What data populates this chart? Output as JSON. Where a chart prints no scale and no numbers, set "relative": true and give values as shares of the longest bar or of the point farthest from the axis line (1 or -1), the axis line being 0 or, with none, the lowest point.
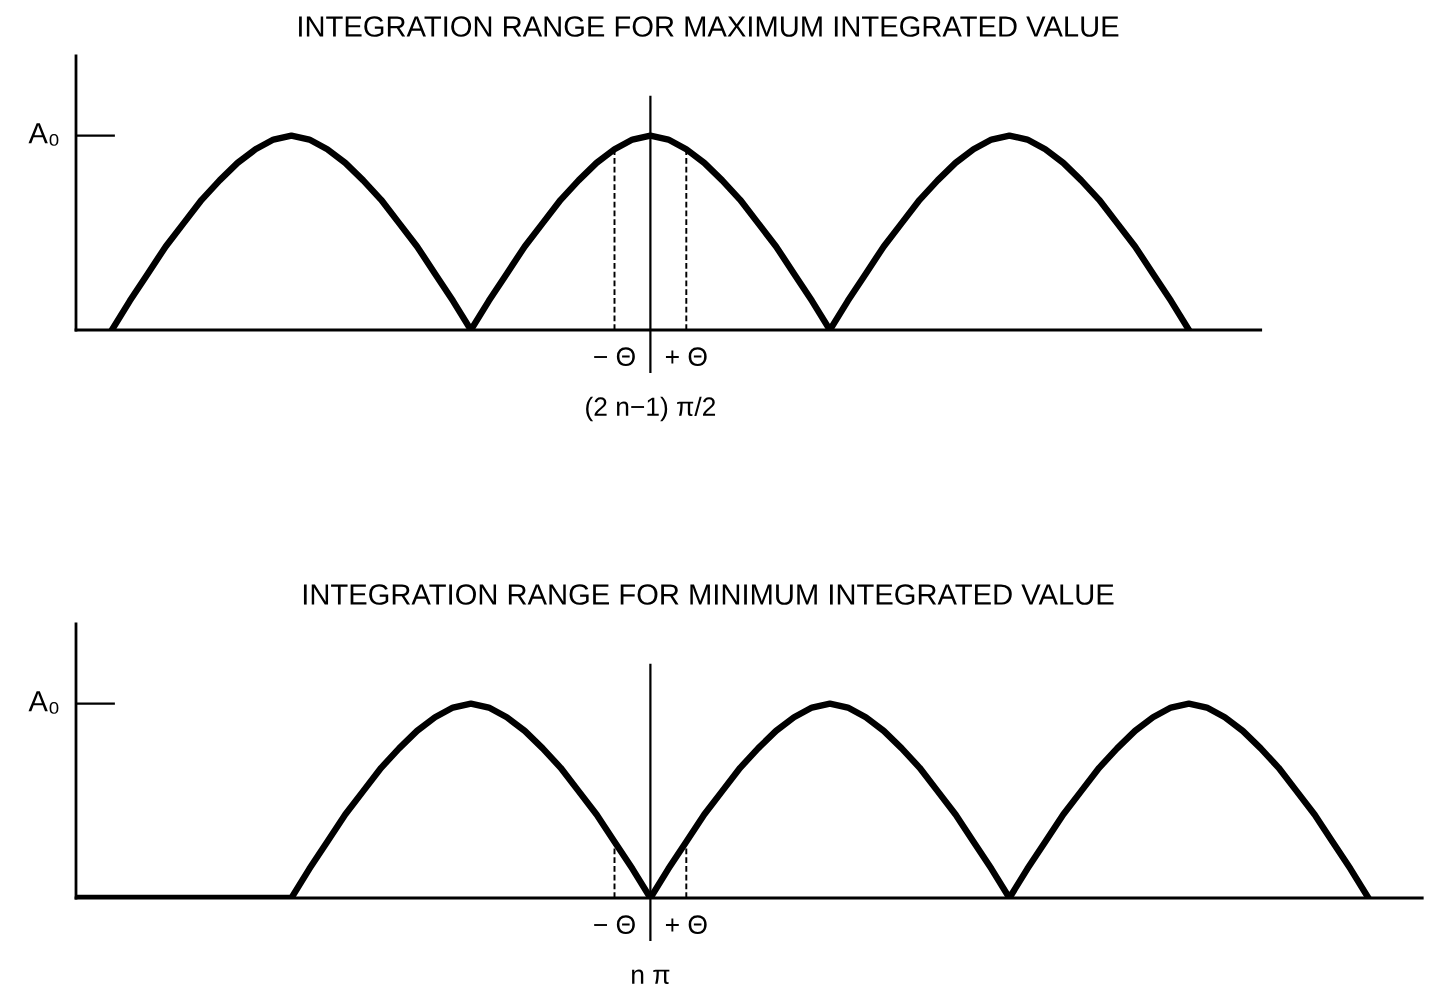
{
  "chart_data": [
    {
      "type": "line",
      "title": "INTEGRATION RANGE FOR MAXIMUM INTEGRATED VALUE",
      "relative": true,
      "ylabel": "A₀",
      "categories": [
        null,
        null,
        null,
        null,
        null,
        null,
        null,
        null,
        null,
        null,
        null,
        null,
        null,
        null,
        null,
        null,
        null,
        null,
        null,
        null,
        null,
        null,
        null,
        null,
        null,
        null,
        null,
        null,
        "− Θ",
        null,
        "(2 n−1) π/2",
        null,
        "+ Θ",
        null,
        null,
        null,
        null,
        null,
        null,
        null,
        null,
        null,
        null,
        null,
        null,
        null,
        null,
        null,
        null,
        null,
        null,
        null,
        null,
        null,
        null,
        null,
        null,
        null,
        null,
        null,
        null
      ],
      "series": [
        {
          "color": "#000000",
          "values": [
            0,
            0.15,
            0.29,
            0.43,
            0.55,
            0.67,
            0.77,
            0.86,
            0.93,
            0.98,
            1,
            0.98,
            0.93,
            0.86,
            0.77,
            0.67,
            0.55,
            0.43,
            0.29,
            0.15,
            0,
            0.15,
            0.29,
            0.43,
            0.55,
            0.67,
            0.77,
            0.86,
            0.93,
            0.98,
            1,
            0.98,
            0.93,
            0.86,
            0.77,
            0.67,
            0.55,
            0.43,
            0.29,
            0.15,
            0,
            0.15,
            0.29,
            0.43,
            0.55,
            0.67,
            0.77,
            0.86,
            0.93,
            0.98,
            1,
            0.98,
            0.93,
            0.86,
            0.77,
            0.67,
            0.55,
            0.43,
            0.29,
            0.15,
            0
          ]
        }
      ],
      "ref_lines": [
        {
          "axis": "x",
          "value": "(2 n−1) π/2",
          "line_style": "solid"
        },
        {
          "axis": "x",
          "value": "− Θ",
          "line_style": "dashed"
        },
        {
          "axis": "x",
          "value": "+ Θ",
          "line_style": "dashed"
        }
      ]
    },
    {
      "type": "line",
      "title": "INTEGRATION RANGE FOR MINIMUM INTEGRATED VALUE",
      "relative": true,
      "ylabel": "A₀",
      "categories": [
        null,
        null,
        null,
        null,
        null,
        null,
        null,
        null,
        null,
        null,
        null,
        null,
        null,
        null,
        null,
        null,
        null,
        null,
        null,
        null,
        null,
        null,
        null,
        null,
        null,
        null,
        null,
        null,
        null,
        null,
        "− Θ",
        null,
        "n π",
        null,
        "+ Θ",
        null,
        null,
        null,
        null,
        null,
        null,
        null,
        null,
        null,
        null,
        null,
        null,
        null,
        null,
        null,
        null,
        null,
        null,
        null,
        null,
        null,
        null,
        null,
        null,
        null,
        null,
        null,
        null,
        null,
        null,
        null,
        null,
        null,
        null,
        null,
        null,
        null,
        null
      ],
      "series": [
        {
          "color": "#000000",
          "values": [
            0,
            0,
            0,
            0,
            0,
            0,
            0,
            0,
            0,
            0,
            0,
            0,
            0,
            0.15,
            0.29,
            0.43,
            0.55,
            0.67,
            0.77,
            0.86,
            0.93,
            0.98,
            1,
            0.98,
            0.93,
            0.86,
            0.77,
            0.67,
            0.55,
            0.43,
            0.29,
            0.15,
            0,
            0.15,
            0.29,
            0.43,
            0.55,
            0.67,
            0.77,
            0.86,
            0.93,
            0.98,
            1,
            0.98,
            0.93,
            0.86,
            0.77,
            0.67,
            0.55,
            0.43,
            0.29,
            0.15,
            0,
            0.15,
            0.29,
            0.43,
            0.55,
            0.67,
            0.77,
            0.86,
            0.93,
            0.98,
            1,
            0.98,
            0.93,
            0.86,
            0.77,
            0.67,
            0.55,
            0.43,
            0.29,
            0.15,
            0
          ]
        }
      ],
      "ref_lines": [
        {
          "axis": "x",
          "value": "n π",
          "line_style": "solid"
        },
        {
          "axis": "x",
          "value": "− Θ",
          "line_style": "dashed"
        },
        {
          "axis": "x",
          "value": "+ Θ",
          "line_style": "dashed"
        }
      ]
    }
  ]
}
